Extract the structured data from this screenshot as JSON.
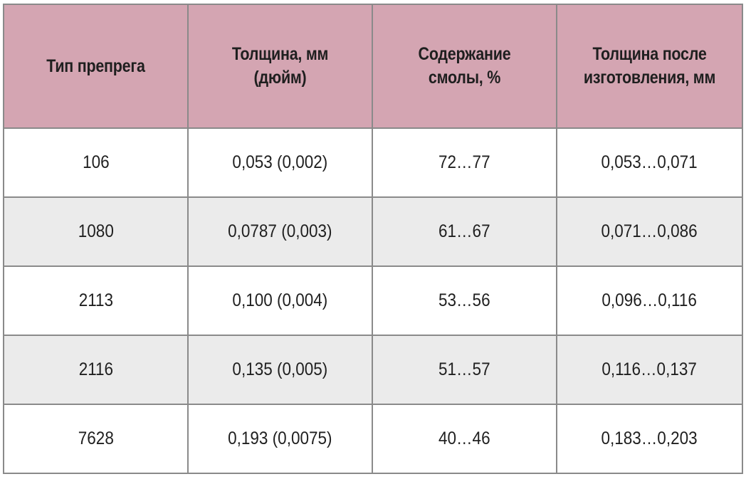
{
  "table": {
    "headers": [
      "Тип препрега",
      "Толщина, мм (дюйм)",
      "Содержание смолы, %",
      "Толщина после изготовления, мм"
    ],
    "rows": [
      [
        "106",
        "0,053 (0,002)",
        "72…77",
        "0,053…0,071"
      ],
      [
        "1080",
        "0,0787 (0,003)",
        "61…67",
        "0,071…0,086"
      ],
      [
        "2113",
        "0,100 (0,004)",
        "53…56",
        "0,096…0,116"
      ],
      [
        "2116",
        "0,135 (0,005)",
        "51…57",
        "0,116…0,137"
      ],
      [
        "7628",
        "0,193 (0,0075)",
        "40…46",
        "0,183…0,203"
      ]
    ]
  },
  "colors": {
    "header_bg": "#d4a5b2",
    "row_alt_bg": "#ebebeb",
    "border": "#8a8a8a"
  }
}
